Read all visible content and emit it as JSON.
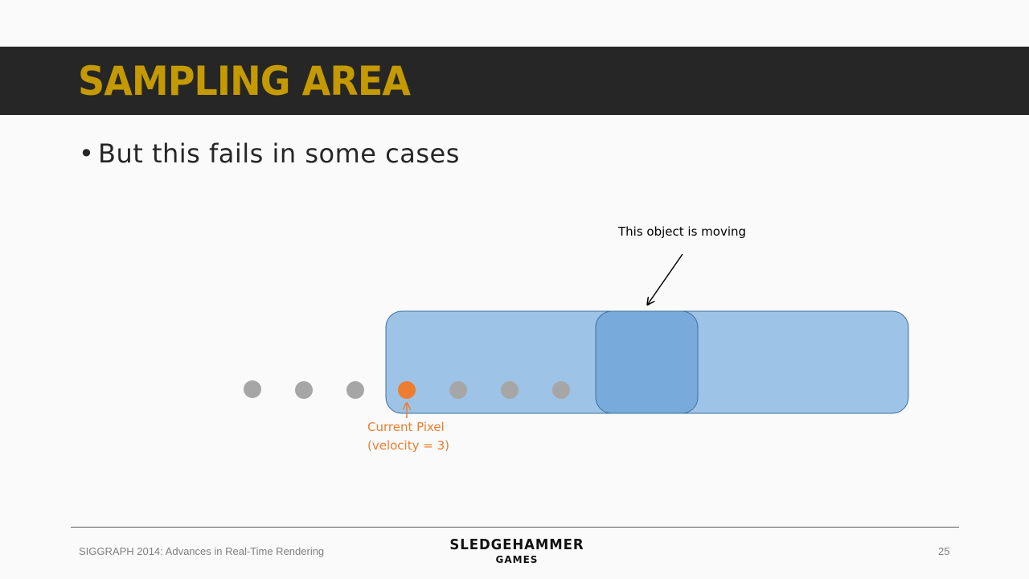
{
  "slide": {
    "title": "SAMPLING AREA",
    "bullet": "But this fails in some cases",
    "bullet_marker": "•"
  },
  "diagram": {
    "moving_label": "This object is moving",
    "pixel_label_line1": "Current Pixel",
    "pixel_label_line2": "(velocity = 3)",
    "colors": {
      "region_fill": "#9dc3e6",
      "object_fill": "#78abdb",
      "outline": "#41719c",
      "sample_dot": "#a6a6a6",
      "current_pixel": "#ed7d31",
      "arrow": "#000000"
    },
    "sample_count": 7,
    "current_pixel_index": 3
  },
  "footer": {
    "left_text": "SIGGRAPH 2014: Advances in Real-Time Rendering",
    "logo_line1": "SLEDGEHAMMER",
    "logo_line2": "GAMES",
    "page_number": "25"
  }
}
